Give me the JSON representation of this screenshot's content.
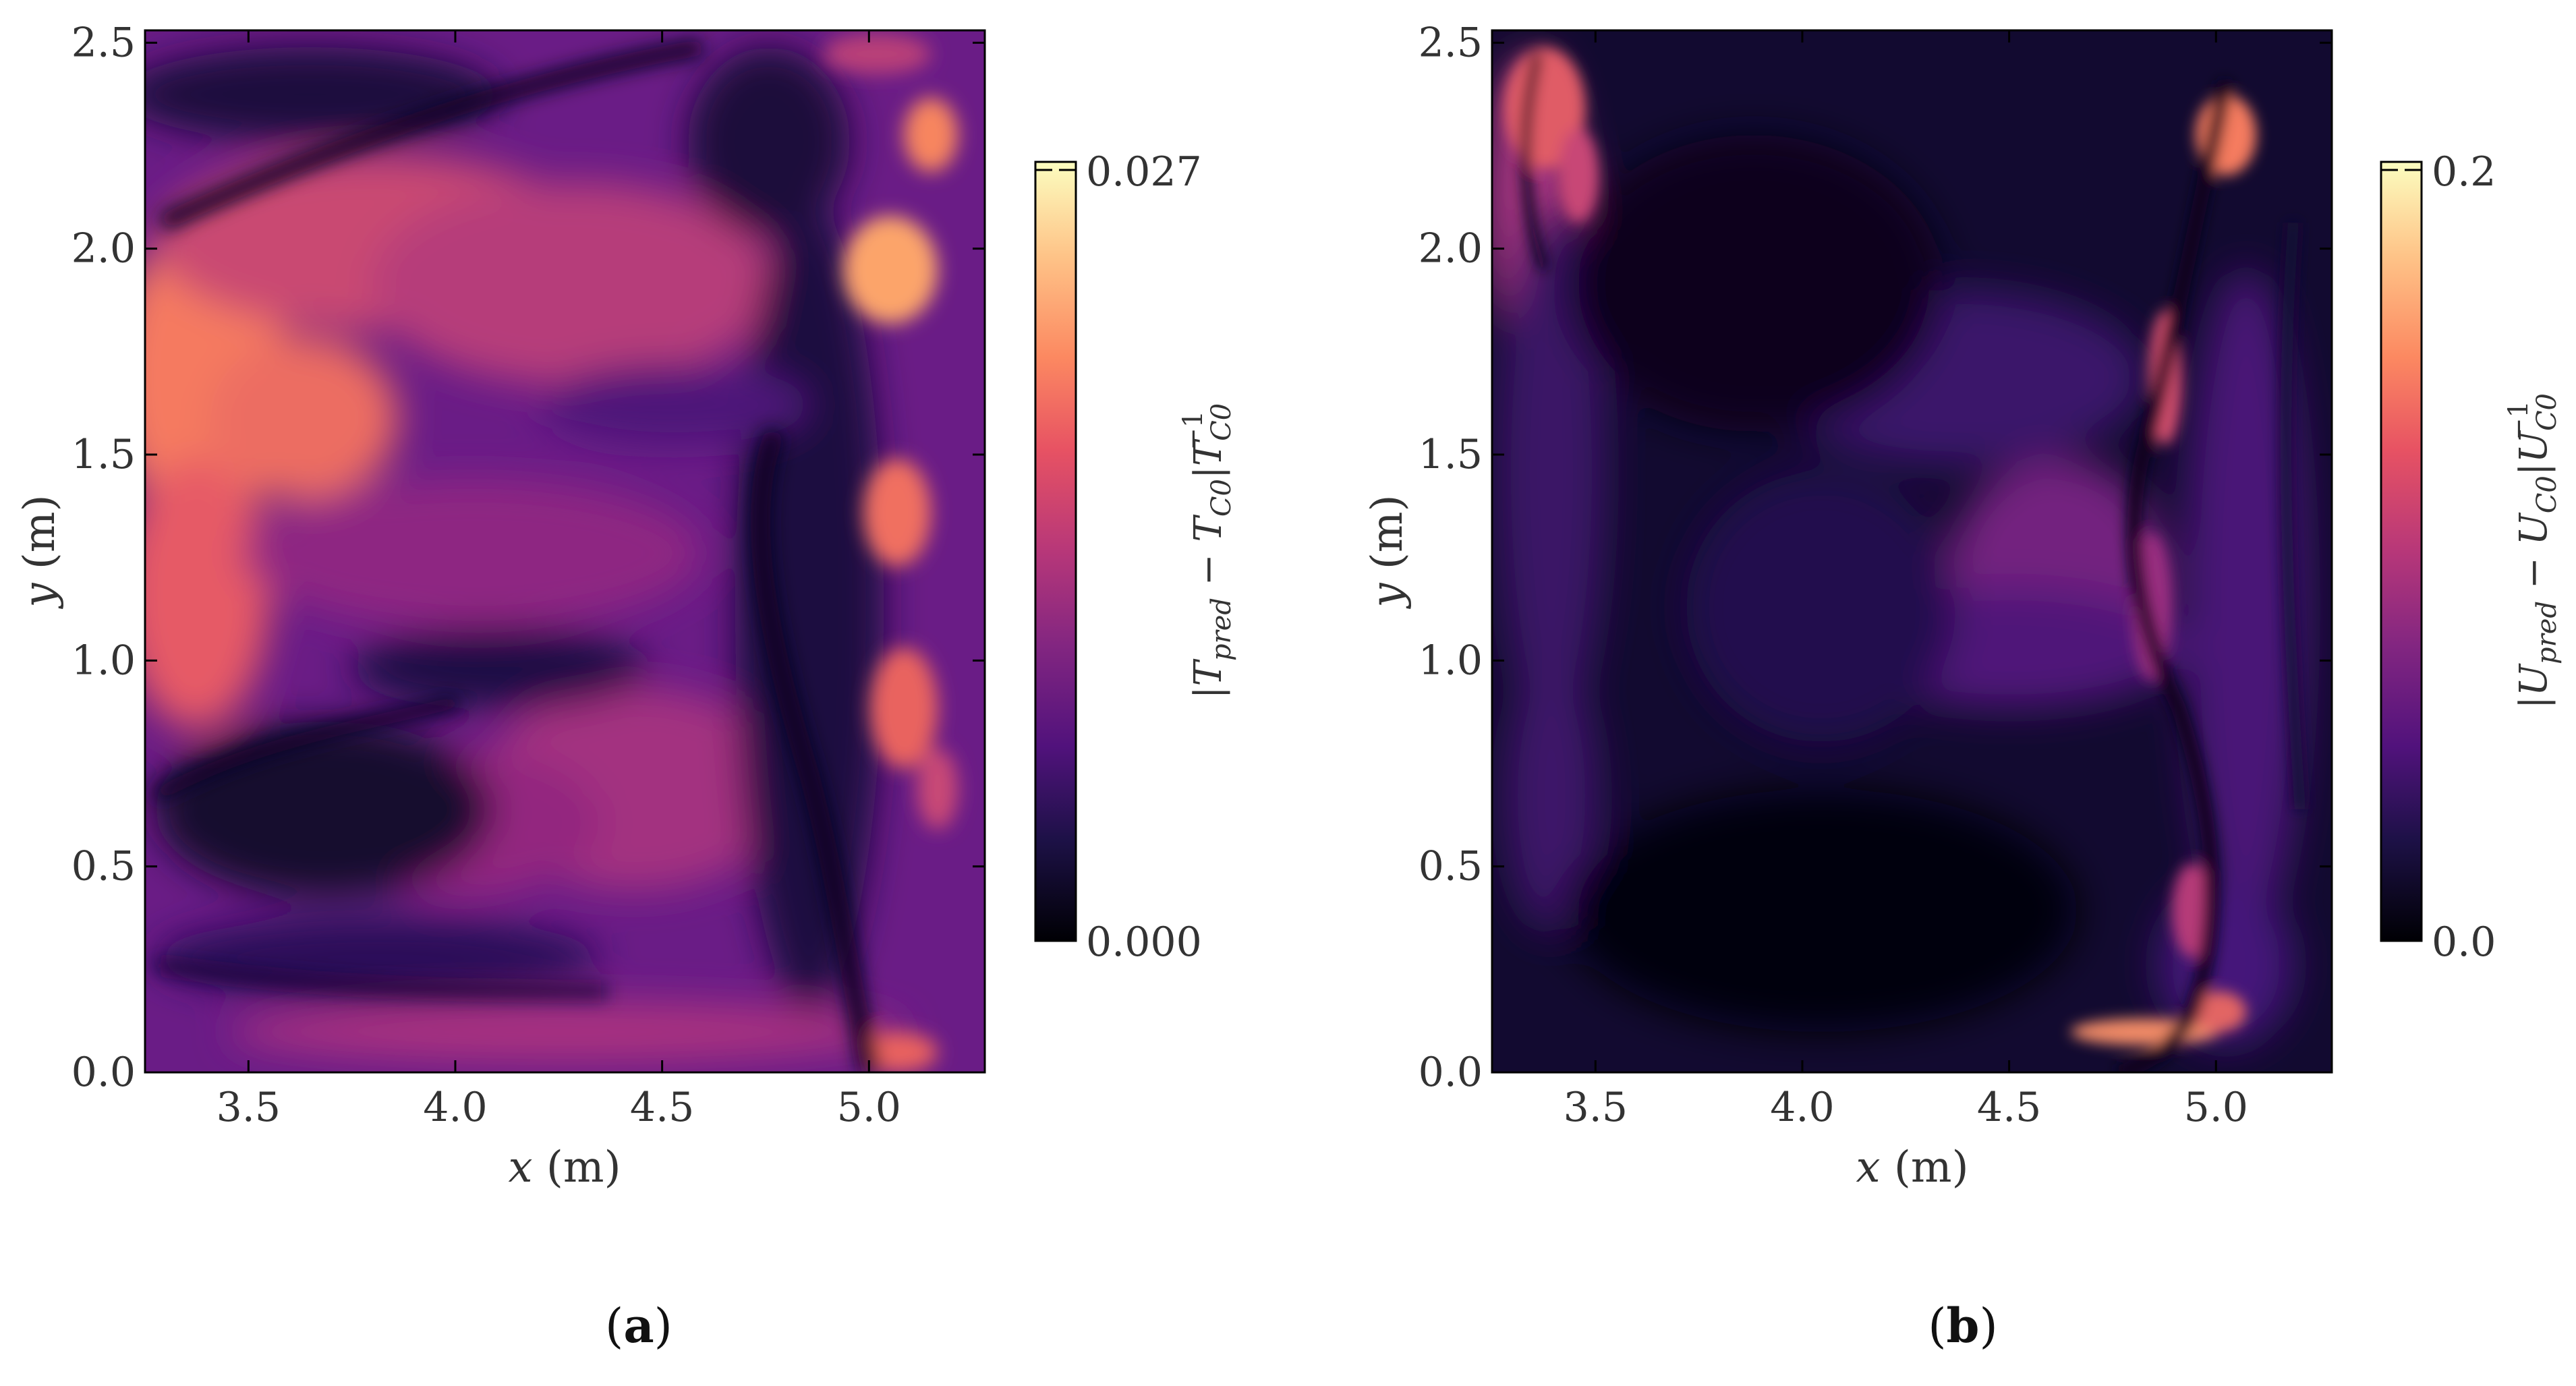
{
  "figure": {
    "panels": [
      {
        "id": "a",
        "label_prefix": "(",
        "label_letter": "a",
        "label_suffix": ")",
        "x_ticks": [
          "3.5",
          "4.0",
          "4.5",
          "5.0"
        ],
        "y_ticks": [
          "0.0",
          "0.5",
          "1.0",
          "1.5",
          "2.0",
          "2.5"
        ],
        "xlabel_var": "x",
        "xlabel_unit": " (m)",
        "ylabel_var": "y",
        "ylabel_unit": " (m)",
        "cbar_max_label": "0.027",
        "cbar_min_label": "0.000",
        "cbar_label_open": "|",
        "cbar_label_var1": "T",
        "cbar_label_sub1": "pred",
        "cbar_label_mid": " − ",
        "cbar_label_var2": "T",
        "cbar_label_sub2": "C0",
        "cbar_label_bar": "|",
        "cbar_label_var3": "T",
        "cbar_label_sub3": "C0",
        "cbar_label_sup3": "−1"
      },
      {
        "id": "b",
        "label_prefix": "(",
        "label_letter": "b",
        "label_suffix": ")",
        "x_ticks": [
          "3.5",
          "4.0",
          "4.5",
          "5.0"
        ],
        "y_ticks": [
          "0.0",
          "0.5",
          "1.0",
          "1.5",
          "2.0",
          "2.5"
        ],
        "xlabel_var": "x",
        "xlabel_unit": " (m)",
        "ylabel_var": "y",
        "ylabel_unit": " (m)",
        "cbar_max_label": "0.2",
        "cbar_min_label": "0.0",
        "cbar_label_open": "|",
        "cbar_label_var1": "U",
        "cbar_label_sub1": "pred",
        "cbar_label_mid": " − ",
        "cbar_label_var2": "U",
        "cbar_label_sub2": "C0",
        "cbar_label_bar": "|",
        "cbar_label_var3": "U",
        "cbar_label_sub3": "C0",
        "cbar_label_sup3": "−1"
      }
    ]
  },
  "chart_data": [
    {
      "type": "heatmap",
      "colormap": "magma",
      "xlim": [
        3.25,
        5.28
      ],
      "ylim": [
        0.0,
        2.53
      ],
      "x_ticks": [
        3.5,
        4.0,
        4.5,
        5.0
      ],
      "y_ticks": [
        0.0,
        0.5,
        1.0,
        1.5,
        2.0,
        2.5
      ],
      "colorbar_range": [
        0.0,
        0.027
      ],
      "colorbar_ticks": [
        0.0,
        0.027
      ],
      "grid": false
    },
    {
      "type": "heatmap",
      "colormap": "magma",
      "xlim": [
        3.25,
        5.28
      ],
      "ylim": [
        0.0,
        2.53
      ],
      "x_ticks": [
        3.5,
        4.0,
        4.5,
        5.0
      ],
      "y_ticks": [
        0.0,
        0.5,
        1.0,
        1.5,
        2.0,
        2.5
      ],
      "colorbar_range": [
        0.0,
        0.2
      ],
      "colorbar_ticks": [
        0.0,
        0.2
      ],
      "grid": false
    }
  ]
}
